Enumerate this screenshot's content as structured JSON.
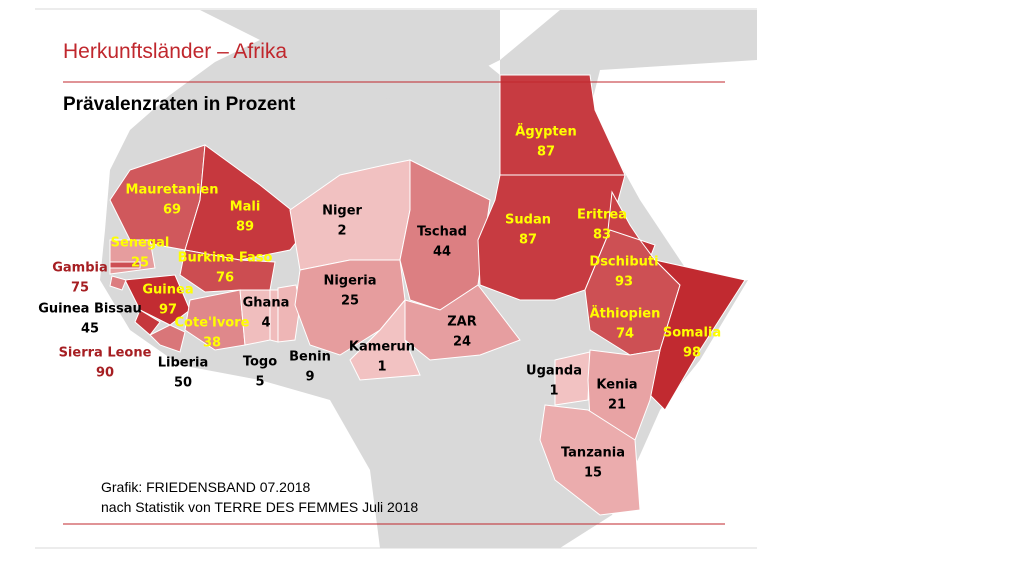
{
  "header": {
    "title": "Herkunftsländer – Afrika",
    "subtitle": "Prävalenzraten in Prozent"
  },
  "countries": [
    {
      "name": "Mauretanien",
      "value": 69
    },
    {
      "name": "Mali",
      "value": 89
    },
    {
      "name": "Senegal",
      "value": 25
    },
    {
      "name": "Gambia",
      "value": 75
    },
    {
      "name": "Burkina Faso",
      "value": 76
    },
    {
      "name": "Guinea",
      "value": 97
    },
    {
      "name": "Guinea Bissau",
      "value": 45
    },
    {
      "name": "Cote'Ivore",
      "value": 38
    },
    {
      "name": "Sierra Leone",
      "value": 90
    },
    {
      "name": "Liberia",
      "value": 50
    },
    {
      "name": "Ghana",
      "value": 4
    },
    {
      "name": "Togo",
      "value": 5
    },
    {
      "name": "Benin",
      "value": 9
    },
    {
      "name": "Niger",
      "value": 2
    },
    {
      "name": "Nigeria",
      "value": 25
    },
    {
      "name": "Kamerun",
      "value": 1
    },
    {
      "name": "Tschad",
      "value": 44
    },
    {
      "name": "ZAR",
      "value": 24
    },
    {
      "name": "Ägypten",
      "value": 87
    },
    {
      "name": "Sudan",
      "value": 87
    },
    {
      "name": "Eritrea",
      "value": 83
    },
    {
      "name": "Dschibuti",
      "value": 93
    },
    {
      "name": "Äthiopien",
      "value": 74
    },
    {
      "name": "Somalia",
      "value": 98
    },
    {
      "name": "Uganda",
      "value": 1
    },
    {
      "name": "Kenia",
      "value": 21
    },
    {
      "name": "Tanzania",
      "value": 15
    }
  ],
  "credits": [
    "Grafik: FRIEDENSBAND 07.2018",
    "nach Statistik von TERRE DES FEMMES Juli 2018"
  ]
}
